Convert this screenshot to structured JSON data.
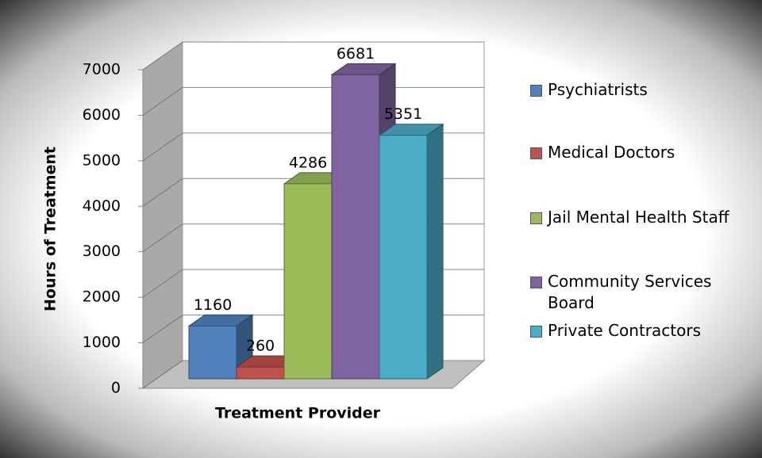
{
  "chart_data": {
    "type": "bar3d",
    "x_label": "Treatment Provider",
    "y_label": "Hours of Treatment",
    "categories": [
      null
    ],
    "series": [
      {
        "name": "Psychiatrists",
        "color": "#4f81bd",
        "values": [
          1160
        ]
      },
      {
        "name": "Medical Doctors",
        "color": "#c0504d",
        "values": [
          260
        ]
      },
      {
        "name": "Jail Mental Health Staff",
        "color": "#9bbb59",
        "values": [
          4286
        ]
      },
      {
        "name": "Community Services Board",
        "color": "#8064a2",
        "values": [
          6681
        ]
      },
      {
        "name": "Private Contractors",
        "color": "#4bacc6",
        "values": [
          5351
        ]
      }
    ],
    "ylim": [
      0,
      7000
    ],
    "yticks": [
      0,
      1000,
      2000,
      3000,
      4000,
      5000,
      6000,
      7000
    ],
    "grid": true,
    "legend": "right"
  }
}
